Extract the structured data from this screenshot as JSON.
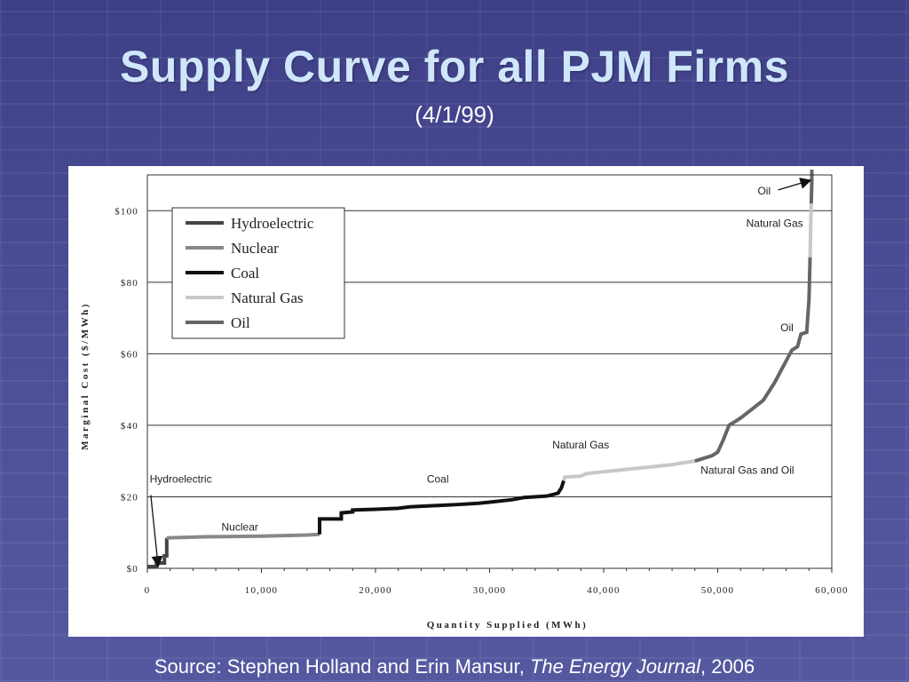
{
  "slide": {
    "title": "Supply Curve for all PJM Firms",
    "subtitle": "(4/1/99)",
    "source_prefix": "Source: Stephen Holland and Erin Mansur, ",
    "source_journal": "The Energy Journal",
    "source_suffix": ", 2006"
  },
  "chart_data": {
    "type": "line",
    "xlabel": "Quantity Supplied (MWh)",
    "ylabel": "Marginal Cost ($/MWh)",
    "xlim": [
      0,
      60000
    ],
    "ylim": [
      0,
      110
    ],
    "x_ticks": [
      "0",
      "10,000",
      "20,000",
      "30,000",
      "40,000",
      "50,000",
      "60,000"
    ],
    "y_ticks": [
      "$0",
      "$20",
      "$40",
      "$60",
      "$80",
      "$100"
    ],
    "grid": "horizontal",
    "legend": {
      "placement": "top-left",
      "entries": [
        {
          "name": "Hydroelectric",
          "color": "#444444"
        },
        {
          "name": "Nuclear",
          "color": "#888888"
        },
        {
          "name": "Coal",
          "color": "#111111"
        },
        {
          "name": "Natural Gas",
          "color": "#c8c8c8"
        },
        {
          "name": "Oil",
          "color": "#666666"
        }
      ]
    },
    "series": [
      {
        "name": "Hydroelectric",
        "color": "#444444",
        "points": [
          [
            0,
            0.5
          ],
          [
            800,
            0.5
          ],
          [
            800,
            1.5
          ],
          [
            1500,
            1.5
          ],
          [
            1500,
            3.5
          ],
          [
            1700,
            3.5
          ],
          [
            1700,
            8.5
          ]
        ]
      },
      {
        "name": "Nuclear",
        "color": "#888888",
        "points": [
          [
            1700,
            8.5
          ],
          [
            5000,
            8.8
          ],
          [
            10000,
            9.0
          ],
          [
            14000,
            9.3
          ],
          [
            15000,
            9.5
          ],
          [
            15100,
            9.5
          ]
        ]
      },
      {
        "name": "Coal",
        "color": "#111111",
        "points": [
          [
            15100,
            9.5
          ],
          [
            15100,
            13.8
          ],
          [
            17000,
            13.8
          ],
          [
            17000,
            15.5
          ],
          [
            18000,
            15.8
          ],
          [
            18000,
            16.3
          ],
          [
            20000,
            16.5
          ],
          [
            22000,
            16.8
          ],
          [
            23000,
            17.2
          ],
          [
            25000,
            17.5
          ],
          [
            27000,
            17.8
          ],
          [
            29000,
            18.2
          ],
          [
            30000,
            18.5
          ],
          [
            32000,
            19.2
          ],
          [
            33000,
            19.8
          ],
          [
            35000,
            20.2
          ],
          [
            36000,
            21.0
          ],
          [
            36300,
            22.5
          ],
          [
            36500,
            24.5
          ]
        ]
      },
      {
        "name": "Natural Gas",
        "color": "#c8c8c8",
        "points": [
          [
            36500,
            24.5
          ],
          [
            36600,
            25.5
          ],
          [
            38000,
            25.8
          ],
          [
            38500,
            26.5
          ],
          [
            40000,
            27.0
          ],
          [
            43000,
            28.0
          ],
          [
            46000,
            29.0
          ],
          [
            48000,
            30.0
          ]
        ]
      },
      {
        "name": "Oil",
        "color": "#666666",
        "points": [
          [
            48000,
            30.0
          ],
          [
            49500,
            31.5
          ],
          [
            50000,
            32.5
          ],
          [
            50500,
            36.0
          ],
          [
            51000,
            40.0
          ],
          [
            52000,
            42.0
          ],
          [
            53000,
            44.5
          ],
          [
            54000,
            47.0
          ],
          [
            55000,
            52.0
          ],
          [
            55500,
            55.0
          ],
          [
            56000,
            58.0
          ],
          [
            56500,
            61.0
          ],
          [
            57000,
            62.0
          ],
          [
            57300,
            65.5
          ],
          [
            57800,
            66.0
          ],
          [
            58000,
            75.0
          ],
          [
            58100,
            87.0
          ]
        ]
      },
      {
        "name": "Natural Gas",
        "color": "#c8c8c8",
        "points": [
          [
            58100,
            87.0
          ],
          [
            58150,
            95.0
          ],
          [
            58200,
            102.0
          ]
        ]
      },
      {
        "name": "Oil",
        "color": "#666666",
        "points": [
          [
            58200,
            102.0
          ],
          [
            58250,
            108.0
          ],
          [
            58250,
            112.0
          ]
        ]
      }
    ],
    "annotations": [
      {
        "text": "Oil",
        "x": 53500,
        "y": 104.5
      },
      {
        "text": "Natural Gas",
        "x": 52500,
        "y": 95.5
      },
      {
        "text": "Oil",
        "x": 55500,
        "y": 66.3
      },
      {
        "text": "Natural Gas",
        "x": 35500,
        "y": 33.5
      },
      {
        "text": "Natural Gas and Oil",
        "x": 48500,
        "y": 26.5
      },
      {
        "text": "Coal",
        "x": 24500,
        "y": 24.0
      },
      {
        "text": "Hydroelectric",
        "x": 200,
        "y": 24.0
      },
      {
        "text": "Nuclear",
        "x": 6500,
        "y": 10.5
      }
    ]
  }
}
